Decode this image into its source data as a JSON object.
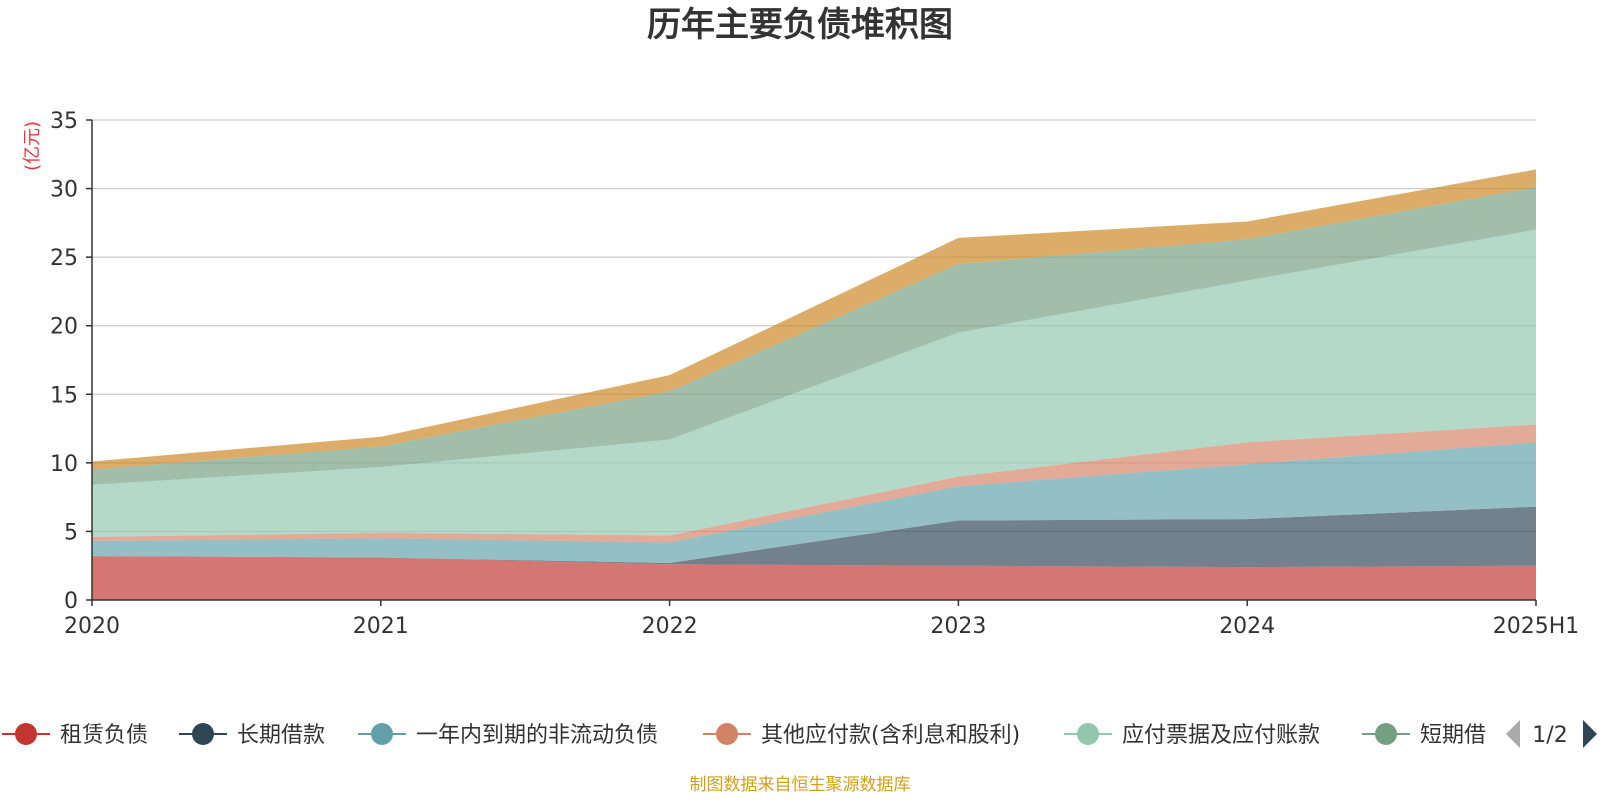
{
  "chart_data": {
    "type": "area",
    "title": "历年主要负债堆积图",
    "unit": "(亿元)",
    "categories": [
      "2020",
      "2021",
      "2022",
      "2023",
      "2024",
      "2025H1"
    ],
    "ylim": [
      0,
      35
    ],
    "yticks": [
      0,
      5,
      10,
      15,
      20,
      25,
      30,
      35
    ],
    "grid": true,
    "stacked": true,
    "series": [
      {
        "name": "租赁负债",
        "color": "#c23531",
        "values": [
          3.2,
          3.1,
          2.6,
          2.5,
          2.4,
          2.5
        ]
      },
      {
        "name": "长期借款",
        "color": "#2f4554",
        "values": [
          0.0,
          0.0,
          0.1,
          3.3,
          3.5,
          4.3
        ]
      },
      {
        "name": "一年内到期的非流动负债",
        "color": "#61a0a8",
        "values": [
          1.1,
          1.4,
          1.5,
          2.5,
          4.0,
          4.7
        ]
      },
      {
        "name": "其他应付款(含利息和股利)",
        "color": "#d48265",
        "values": [
          0.3,
          0.4,
          0.5,
          0.7,
          1.6,
          1.3
        ]
      },
      {
        "name": "应付票据及应付账款",
        "color": "#91c7ae",
        "values": [
          3.8,
          4.8,
          7.0,
          10.5,
          11.8,
          14.2
        ]
      },
      {
        "name": "短期借款",
        "color": "#749f83",
        "values": [
          1.1,
          1.5,
          3.5,
          5.0,
          3.0,
          3.1
        ]
      },
      {
        "name": "",
        "color": "#ca8622",
        "values": [
          0.6,
          0.7,
          1.2,
          1.9,
          1.3,
          1.3
        ]
      }
    ],
    "legend": {
      "placement": "bottom",
      "visible_count": 6,
      "truncated_last_label": "短期借",
      "page": "1/2"
    }
  },
  "source_note": "制图数据来自恒生聚源数据库"
}
